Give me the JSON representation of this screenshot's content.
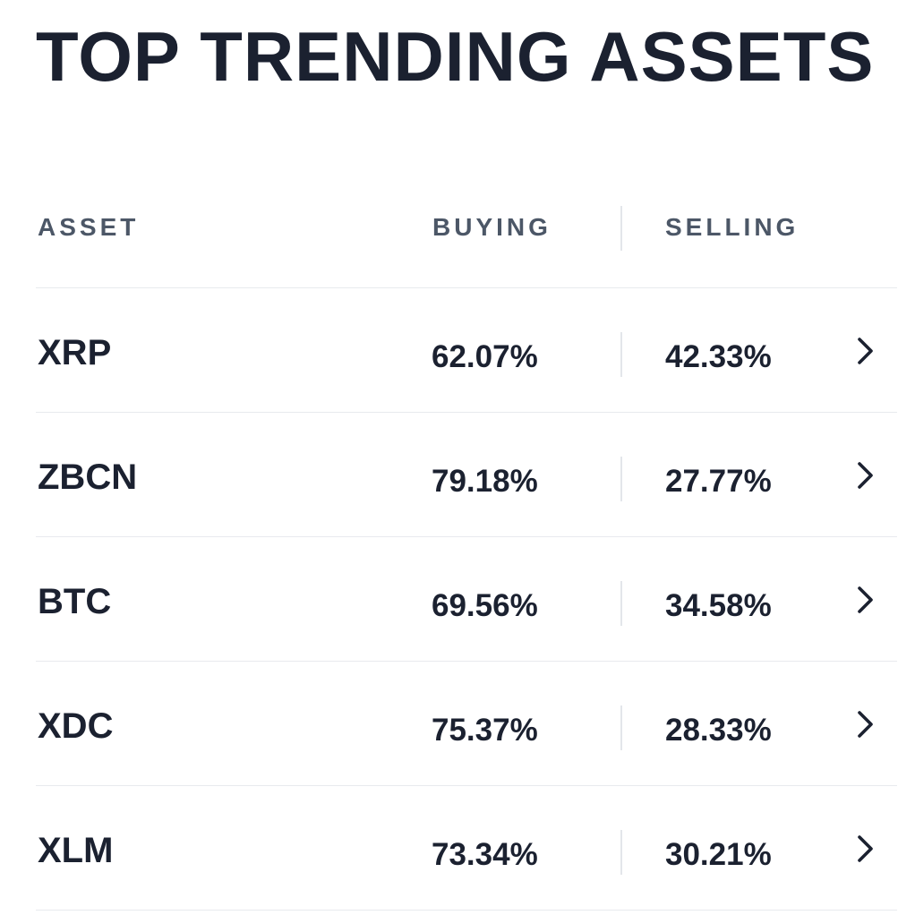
{
  "title": "TOP TRENDING ASSETS",
  "columns": {
    "asset": "ASSET",
    "buying": "BUYING",
    "selling": "SELLING"
  },
  "rows": [
    {
      "asset": "XRP",
      "buying": "62.07%",
      "selling": "42.33%",
      "icon": "chevron-right-icon"
    },
    {
      "asset": "ZBCN",
      "buying": "79.18%",
      "selling": "27.77%",
      "icon": "chevron-right-icon"
    },
    {
      "asset": "BTC",
      "buying": "69.56%",
      "selling": "34.58%",
      "icon": "chevron-right-icon"
    },
    {
      "asset": "XDC",
      "buying": "75.37%",
      "selling": "28.33%",
      "icon": "chevron-right-icon"
    },
    {
      "asset": "XLM",
      "buying": "73.34%",
      "selling": "30.21%",
      "icon": "chevron-right-icon"
    }
  ],
  "colors": {
    "text": "#1b2130",
    "header_text": "#4c5767",
    "divider": "#e8eaee",
    "background": "#ffffff"
  }
}
